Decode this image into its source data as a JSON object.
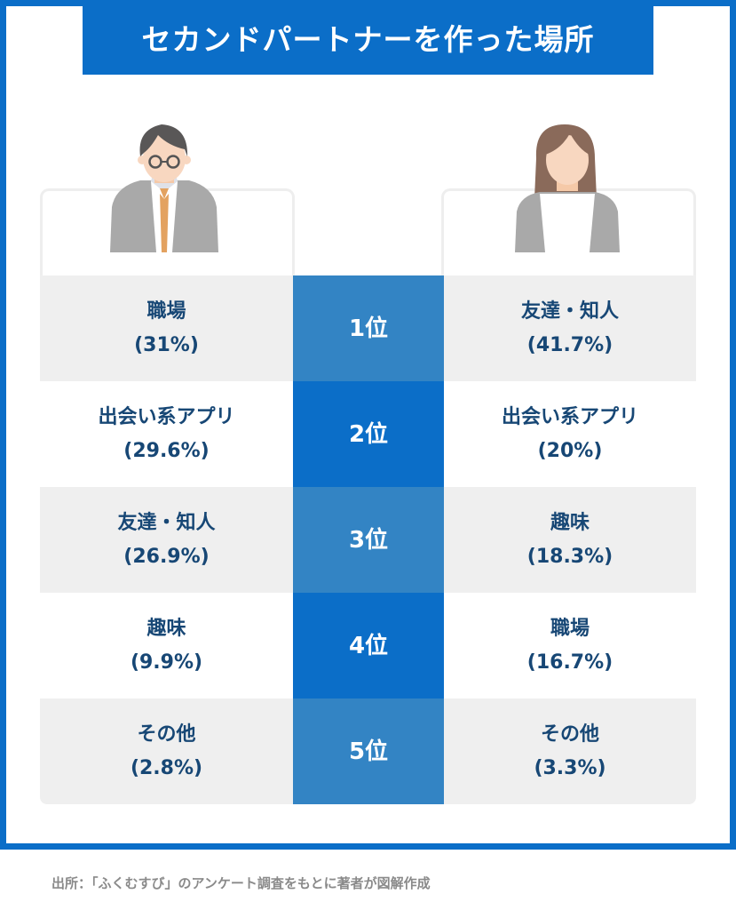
{
  "title": "セカンドパートナーを作った場所",
  "male_icon": "man-avatar-icon",
  "female_icon": "woman-avatar-icon",
  "colors": {
    "accent": "#0b6ec8",
    "rank_odd": "#3384c4",
    "text": "#174775",
    "row_gray": "#efefef"
  },
  "rows": [
    {
      "rank": "1位",
      "male": {
        "place": "職場",
        "pct": "(31%)"
      },
      "female": {
        "place": "友達・知人",
        "pct": "(41.7%)"
      }
    },
    {
      "rank": "2位",
      "male": {
        "place": "出会い系アプリ",
        "pct": "(29.6%)"
      },
      "female": {
        "place": "出会い系アプリ",
        "pct": "(20%)"
      }
    },
    {
      "rank": "3位",
      "male": {
        "place": "友達・知人",
        "pct": "(26.9%)"
      },
      "female": {
        "place": "趣味",
        "pct": "(18.3%)"
      }
    },
    {
      "rank": "4位",
      "male": {
        "place": "趣味",
        "pct": "(9.9%)"
      },
      "female": {
        "place": "職場",
        "pct": "(16.7%)"
      }
    },
    {
      "rank": "5位",
      "male": {
        "place": "その他",
        "pct": "(2.8%)"
      },
      "female": {
        "place": "その他",
        "pct": "(3.3%)"
      }
    }
  ],
  "source": "出所：「ふくむすび」のアンケート調査をもとに著者が図解作成"
}
